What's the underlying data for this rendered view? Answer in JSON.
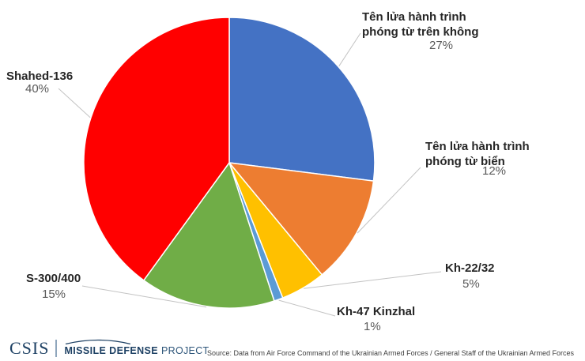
{
  "chart_data": {
    "type": "pie",
    "title": "",
    "unit": "%",
    "direction": "clockwise",
    "start_angle_deg": 0,
    "series": [
      {
        "label": "Tên lửa hành trình phóng từ trên không",
        "value": 27,
        "pct_label": "27%",
        "color": "#4472C4"
      },
      {
        "label": "Tên lửa hành trình phóng từ biển",
        "value": 12,
        "pct_label": "12%",
        "color": "#ED7D31"
      },
      {
        "label": "Kh-22/32",
        "value": 5,
        "pct_label": "5%",
        "color": "#FFC000"
      },
      {
        "label": "Kh-47 Kinzhal",
        "value": 1,
        "pct_label": "1%",
        "color": "#5B9BD5"
      },
      {
        "label": "S-300/400",
        "value": 15,
        "pct_label": "15%",
        "color": "#70AD47"
      },
      {
        "label": "Shahed-136",
        "value": 40,
        "pct_label": "40%",
        "color": "#FF0000"
      }
    ]
  },
  "labels": {
    "air_cruise": {
      "line1": "Tên lửa hành trình",
      "line2": "phóng từ trên không",
      "pct": "27%"
    },
    "sea_cruise": {
      "line1": "Tên lửa hành trình",
      "line2": "phóng từ biển",
      "pct": "12%"
    },
    "kh2232": {
      "name": "Kh-22/32",
      "pct": "5%"
    },
    "kinzhal": {
      "name": "Kh-47 Kinzhal",
      "pct": "1%"
    },
    "s300": {
      "name": "S-300/400",
      "pct": "15%"
    },
    "shahed": {
      "name": "Shahed-136",
      "pct": "40%"
    }
  },
  "footer": {
    "logo_csis": "CSIS",
    "logo_bold": "MISSILE DEFENSE",
    "logo_light": "PROJECT",
    "source": "Source: Data from Air Force Command of the Ukrainian Armed Forces / General Staff of the Ukrainian Armed Forces"
  },
  "colors": {
    "navy": "#1E4164",
    "label_text": "#262626",
    "pct_text": "#595959",
    "leader_line": "#C3C3C3"
  }
}
